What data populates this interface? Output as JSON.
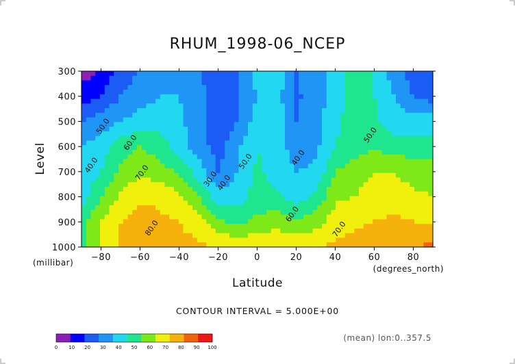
{
  "chart_data": {
    "type": "heatmap",
    "title": "RHUM_1998-06_NCEP",
    "xlabel": "Latitude",
    "ylabel": "Level",
    "x_unit": "(degrees_north)",
    "y_unit": "(millibar)",
    "xlim": [
      -90,
      90
    ],
    "ylim": [
      1000,
      300
    ],
    "x_ticks": [
      -80,
      -60,
      -40,
      -20,
      0,
      20,
      40,
      60,
      80
    ],
    "y_ticks": [
      300,
      400,
      500,
      600,
      700,
      800,
      900,
      1000
    ],
    "contour_interval_label": "CONTOUR INTERVAL = 5.000E+00",
    "annotation": "(mean) lon:0..357.5",
    "colorbar": {
      "levels": [
        0,
        10,
        20,
        30,
        40,
        50,
        60,
        70,
        80,
        90,
        100
      ],
      "colors": [
        "#8c1fb7",
        "#0000ff",
        "#1b5cf5",
        "#1f96f5",
        "#22d8f0",
        "#1fe58f",
        "#7ee818",
        "#f0f00c",
        "#f6b10d",
        "#f2610d",
        "#f01616"
      ]
    },
    "contour_labels": [
      {
        "text": "50.0",
        "x": -78,
        "y": 525
      },
      {
        "text": "60.0",
        "x": -64,
        "y": 590
      },
      {
        "text": "40.0",
        "x": -84,
        "y": 680
      },
      {
        "text": "70.0",
        "x": -58,
        "y": 710
      },
      {
        "text": "80.0",
        "x": -53,
        "y": 930
      },
      {
        "text": "30.0",
        "x": -23,
        "y": 735
      },
      {
        "text": "40.0",
        "x": -16,
        "y": 750
      },
      {
        "text": "50.0",
        "x": -5,
        "y": 665
      },
      {
        "text": "40.0",
        "x": 22,
        "y": 650
      },
      {
        "text": "60.0",
        "x": 19,
        "y": 875
      },
      {
        "text": "70.0",
        "x": 43,
        "y": 935
      },
      {
        "text": "50.0",
        "x": 59,
        "y": 560
      }
    ],
    "series": [
      {
        "latitude": [
          -90,
          -80,
          -70,
          -60,
          -50,
          -40,
          -30,
          -20,
          -10,
          0,
          10,
          20,
          30,
          40,
          50,
          60,
          70,
          80,
          90
        ],
        "level": [
          300,
          400,
          500,
          600,
          700,
          800,
          900,
          1000
        ],
        "rhum": [
          [
            5,
            10,
            25,
            30,
            30,
            30,
            30,
            25,
            30,
            45,
            45,
            30,
            35,
            45,
            55,
            50,
            35,
            25,
            20
          ],
          [
            15,
            20,
            30,
            35,
            40,
            40,
            35,
            22,
            28,
            40,
            45,
            28,
            35,
            45,
            55,
            50,
            40,
            30,
            25
          ],
          [
            30,
            35,
            40,
            45,
            45,
            42,
            35,
            22,
            30,
            45,
            45,
            30,
            35,
            48,
            55,
            52,
            45,
            45,
            45
          ],
          [
            40,
            45,
            55,
            60,
            55,
            45,
            35,
            25,
            38,
            50,
            45,
            35,
            38,
            50,
            56,
            58,
            55,
            55,
            55
          ],
          [
            40,
            50,
            62,
            68,
            65,
            58,
            45,
            30,
            40,
            52,
            45,
            40,
            42,
            60,
            65,
            70,
            70,
            66,
            66
          ],
          [
            45,
            60,
            72,
            78,
            78,
            72,
            60,
            45,
            45,
            55,
            52,
            45,
            52,
            68,
            70,
            75,
            75,
            72,
            70
          ],
          [
            55,
            70,
            80,
            86,
            82,
            80,
            75,
            62,
            58,
            62,
            66,
            62,
            66,
            75,
            78,
            80,
            82,
            80,
            80
          ],
          [
            55,
            72,
            82,
            85,
            84,
            83,
            82,
            80,
            78,
            80,
            80,
            78,
            79,
            82,
            84,
            85,
            86,
            90,
            92
          ]
        ]
      }
    ]
  }
}
